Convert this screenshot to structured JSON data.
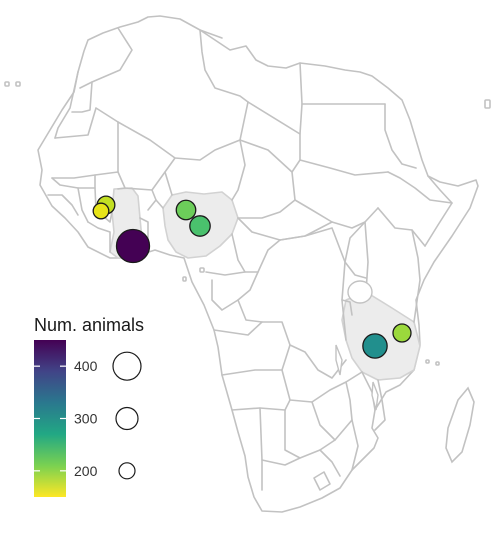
{
  "legend": {
    "title": "Num. animals",
    "color_scale": {
      "colormap": "viridis",
      "min": 150,
      "max": 450,
      "stops": [
        "#fde725",
        "#7ad151",
        "#22a884",
        "#2a788e",
        "#414487",
        "#440154"
      ],
      "ticks": [
        {
          "value": 200,
          "label": "200"
        },
        {
          "value": 300,
          "label": "300"
        },
        {
          "value": 400,
          "label": "400"
        }
      ]
    },
    "size_scale": [
      {
        "value": 200
      },
      {
        "value": 300
      },
      {
        "value": 400
      }
    ]
  },
  "highlighted_countries": [
    "Ghana",
    "Nigeria",
    "Tanzania"
  ],
  "sites": [
    {
      "country": "Ghana",
      "value": 195,
      "color": "#c2df23"
    },
    {
      "country": "Ghana",
      "value": 160,
      "color": "#e7e419"
    },
    {
      "country": "Ghana",
      "value": 450,
      "color": "#440154"
    },
    {
      "country": "Nigeria",
      "value": 225,
      "color": "#6ccd5a"
    },
    {
      "country": "Nigeria",
      "value": 240,
      "color": "#4ac16d"
    },
    {
      "country": "Tanzania",
      "value": 305,
      "color": "#218f8d"
    },
    {
      "country": "Tanzania",
      "value": 200,
      "color": "#9bd93c"
    }
  ]
}
